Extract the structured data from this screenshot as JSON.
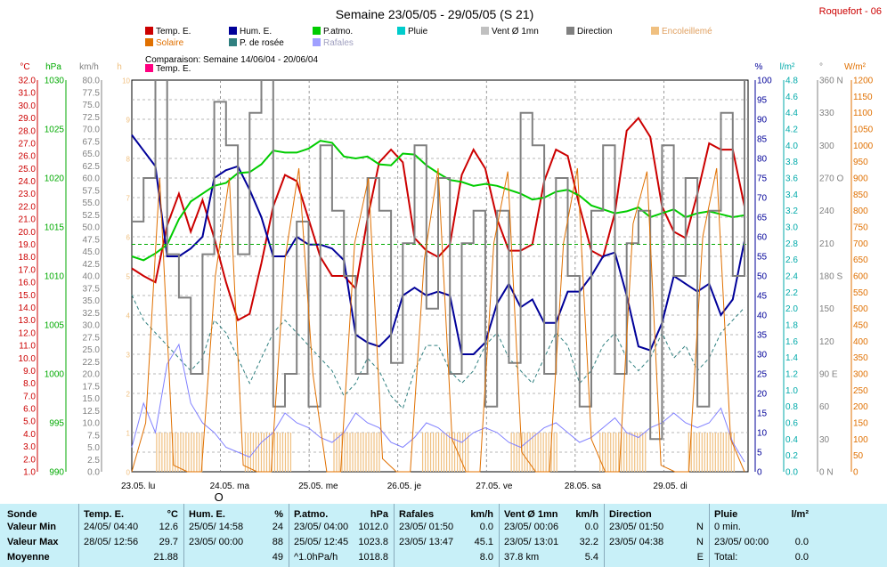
{
  "title": "Semaine 23/05/05 - 29/05/05 (S 21)",
  "station": "Roquefort - 06",
  "comparison": "Comparaison: Semaine 14/06/04 - 20/06/04",
  "legend": [
    {
      "label": "Temp. E.",
      "color": "#cc0000"
    },
    {
      "label": "Hum. E.",
      "color": "#000099"
    },
    {
      "label": "P.atmo.",
      "color": "#00cc00"
    },
    {
      "label": "Pluie",
      "color": "#00cccc"
    },
    {
      "label": "Vent Ø 1mn",
      "color": "#c0c0c0"
    },
    {
      "label": "Direction",
      "color": "#808080"
    },
    {
      "label": "Encoleillemé",
      "color": "#f0c080"
    },
    {
      "label": "Solaire",
      "color": "#e07000"
    },
    {
      "label": "P. de rosée",
      "color": "#308080"
    },
    {
      "label": "Rafales",
      "color": "#a0a0ff"
    },
    {
      "label": "Temp. E.",
      "color": "#ff0080"
    }
  ],
  "chart_data": {
    "type": "line",
    "x_labels": [
      "23.05. lu",
      "24.05. ma",
      "25.05. me",
      "26.05. je",
      "27.05. ve",
      "28.05. sa",
      "29.05. di"
    ],
    "annotations": [
      "O"
    ],
    "axes": {
      "temp": {
        "unit": "°C",
        "min": 1.0,
        "max": 32.0,
        "step": 1.0,
        "color": "#cc0000"
      },
      "pressure": {
        "unit": "hPa",
        "min": 990,
        "max": 1030,
        "step": 5,
        "color": "#00aa00"
      },
      "wind": {
        "unit": "km/h",
        "min": 0.0,
        "max": 80.0,
        "step": 2.5,
        "color": "#808080"
      },
      "sun": {
        "unit": "h",
        "min": 0,
        "max": 10,
        "step": 1,
        "color": "#f0c080"
      },
      "humidity": {
        "unit": "%",
        "min": 0,
        "max": 100,
        "step": 5,
        "color": "#000099"
      },
      "rain": {
        "unit": "l/m²",
        "min": 0.0,
        "max": 4.8,
        "step": 0.2,
        "color": "#00aaaa"
      },
      "direction": {
        "unit": "°",
        "min": 0,
        "max": 360,
        "step": 30,
        "labels": {
          "0": "N",
          "90": "E",
          "180": "S",
          "270": "O",
          "360": "N"
        },
        "color": "#808080"
      },
      "solar": {
        "unit": "W/m²",
        "min": 0,
        "max": 1200,
        "step": 50,
        "color": "#e07000"
      }
    },
    "series": [
      {
        "name": "Temp. E.",
        "axis": "temp",
        "color": "#cc0000",
        "values": [
          17.1,
          16.5,
          16.0,
          20.5,
          23.0,
          20.0,
          22.5,
          19.5,
          16.0,
          13.0,
          13.5,
          17.5,
          22.0,
          24.5,
          24.0,
          21.0,
          18.0,
          16.5,
          16.5,
          15.5,
          21.0,
          25.5,
          26.5,
          25.5,
          19.5,
          18.5,
          18.0,
          19.0,
          24.5,
          26.5,
          25.0,
          21.0,
          18.5,
          18.5,
          19.0,
          24.0,
          26.5,
          26.0,
          22.0,
          18.5,
          18.0,
          21.5,
          28.0,
          29.0,
          27.5,
          22.0,
          20.0,
          19.5,
          23.0,
          27.0,
          26.5,
          26.5,
          22.0
        ]
      },
      {
        "name": "Hum. E.",
        "axis": "humidity",
        "color": "#000099",
        "values": [
          86,
          82,
          78,
          55,
          55,
          57,
          60,
          75,
          77,
          78,
          72,
          65,
          55,
          55,
          60,
          58,
          58,
          57,
          54,
          35,
          33,
          32,
          35,
          45,
          47,
          45,
          46,
          45,
          30,
          30,
          33,
          43,
          48,
          42,
          44,
          38,
          38,
          46,
          46,
          50,
          55,
          56,
          45,
          32,
          31,
          38,
          50,
          48,
          46,
          48,
          40,
          44,
          59
        ]
      },
      {
        "name": "P.atmo.",
        "axis": "pressure",
        "color": "#00cc00",
        "values": [
          1012.0,
          1011.6,
          1012.3,
          1013.2,
          1015.8,
          1017.6,
          1018.4,
          1019.2,
          1019.5,
          1020.5,
          1020.6,
          1021.4,
          1022.8,
          1022.6,
          1022.6,
          1023.0,
          1023.8,
          1023.6,
          1022.2,
          1022.0,
          1022.2,
          1021.4,
          1021.3,
          1022.5,
          1022.4,
          1021.3,
          1020.5,
          1019.8,
          1019.6,
          1019.2,
          1019.4,
          1019.2,
          1018.8,
          1018.4,
          1017.8,
          1018.0,
          1018.6,
          1018.8,
          1018.2,
          1017.2,
          1016.8,
          1016.4,
          1016.6,
          1017.0,
          1016.0,
          1016.4,
          1016.8,
          1016.0,
          1016.4,
          1016.6,
          1016.3,
          1016.0,
          1016.2
        ]
      },
      {
        "name": "Comparaison Temp. E.",
        "axis": "temp",
        "color": "#00aa00",
        "dashed": true,
        "values": [
          19.0,
          19.0
        ]
      },
      {
        "name": "P. de rosée",
        "axis": "temp",
        "color": "#308080",
        "dashed": true,
        "values": [
          15,
          13,
          12,
          11,
          10,
          9,
          10,
          13,
          12,
          10,
          8,
          10,
          12,
          13,
          12,
          11,
          10,
          9,
          7,
          8,
          10,
          9,
          7,
          6,
          9,
          11,
          11,
          9,
          8,
          9,
          11,
          12,
          10,
          9,
          8,
          10,
          12,
          11,
          8,
          9,
          11,
          12,
          10,
          9,
          10,
          12,
          10,
          11,
          9,
          10,
          12,
          13,
          14
        ]
      },
      {
        "name": "Rafales",
        "axis": "wind",
        "color": "#8080ff",
        "values": [
          5,
          14,
          8,
          22,
          26,
          14,
          10,
          8,
          5,
          4,
          3,
          6,
          8,
          12,
          10,
          9,
          7,
          6,
          8,
          12,
          10,
          9,
          6,
          5,
          7,
          10,
          9,
          7,
          6,
          8,
          9,
          8,
          6,
          5,
          7,
          9,
          10,
          8,
          6,
          7,
          9,
          11,
          8,
          7,
          9,
          10,
          12,
          10,
          9,
          10,
          13,
          6,
          2
        ]
      },
      {
        "name": "Direction",
        "axis": "direction",
        "color": "#808080",
        "values": [
          230,
          270,
          360,
          200,
          160,
          90,
          200,
          340,
          300,
          200,
          330,
          360,
          60,
          90,
          230,
          60,
          300,
          240,
          180,
          90,
          270,
          240,
          100,
          210,
          300,
          150,
          270,
          90,
          210,
          240,
          60,
          240,
          100,
          330,
          300,
          90,
          270,
          180,
          60,
          240,
          300,
          90,
          210,
          240,
          30,
          300,
          180,
          270,
          60,
          240,
          330,
          180,
          360
        ]
      },
      {
        "name": "Solaire",
        "axis": "solar",
        "color": "#e07000",
        "values": [
          0,
          150,
          900,
          20,
          0,
          0,
          600,
          900,
          20,
          0,
          0,
          650,
          930,
          300,
          0,
          0,
          700,
          900,
          40,
          0,
          0,
          650,
          930,
          100,
          0,
          0,
          700,
          920,
          60,
          0,
          0,
          700,
          930,
          100,
          0,
          0,
          760,
          920,
          20,
          0,
          0,
          720,
          930,
          100,
          0
        ]
      }
    ]
  },
  "stats": {
    "headers": {
      "sonde": "Sonde",
      "min": "Valeur Min",
      "max": "Valeur Max",
      "avg": "Moyenne"
    },
    "columns": [
      {
        "title": "Temp. E.",
        "unit": "°C",
        "rows": [
          [
            "24/05/ 04:40",
            "12.6"
          ],
          [
            "28/05/ 12:56",
            "29.7"
          ],
          [
            "",
            "21.88"
          ]
        ]
      },
      {
        "title": "Hum. E.",
        "unit": "%",
        "rows": [
          [
            "25/05/ 14:58",
            "24"
          ],
          [
            "23/05/ 00:00",
            "88"
          ],
          [
            "",
            "49"
          ]
        ]
      },
      {
        "title": "P.atmo.",
        "unit": "hPa",
        "rows": [
          [
            "23/05/ 04:00",
            "1012.0"
          ],
          [
            "25/05/ 12:45",
            "1023.8"
          ],
          [
            "^1.0hPa/h",
            "1018.8"
          ]
        ]
      },
      {
        "title": "Rafales",
        "unit": "km/h",
        "rows": [
          [
            "23/05/ 01:50",
            "0.0"
          ],
          [
            "23/05/ 13:47",
            "45.1"
          ],
          [
            "",
            "8.0"
          ]
        ]
      },
      {
        "title": "Vent Ø 1mn",
        "unit": "km/h",
        "rows": [
          [
            "23/05/ 00:06",
            "0.0"
          ],
          [
            "23/05/ 13:01",
            "32.2"
          ],
          [
            "37.8 km",
            "5.4"
          ]
        ]
      },
      {
        "title": "Direction",
        "unit": "",
        "rows": [
          [
            "23/05/ 01:50",
            "N"
          ],
          [
            "23/05/ 04:38",
            "N"
          ],
          [
            "",
            "E"
          ]
        ]
      },
      {
        "title": "Pluie",
        "unit": "l/m²",
        "rows": [
          [
            "0 min.",
            ""
          ],
          [
            "23/05/ 00:00",
            "0.0"
          ],
          [
            "Total:",
            "0.0"
          ]
        ]
      }
    ]
  }
}
